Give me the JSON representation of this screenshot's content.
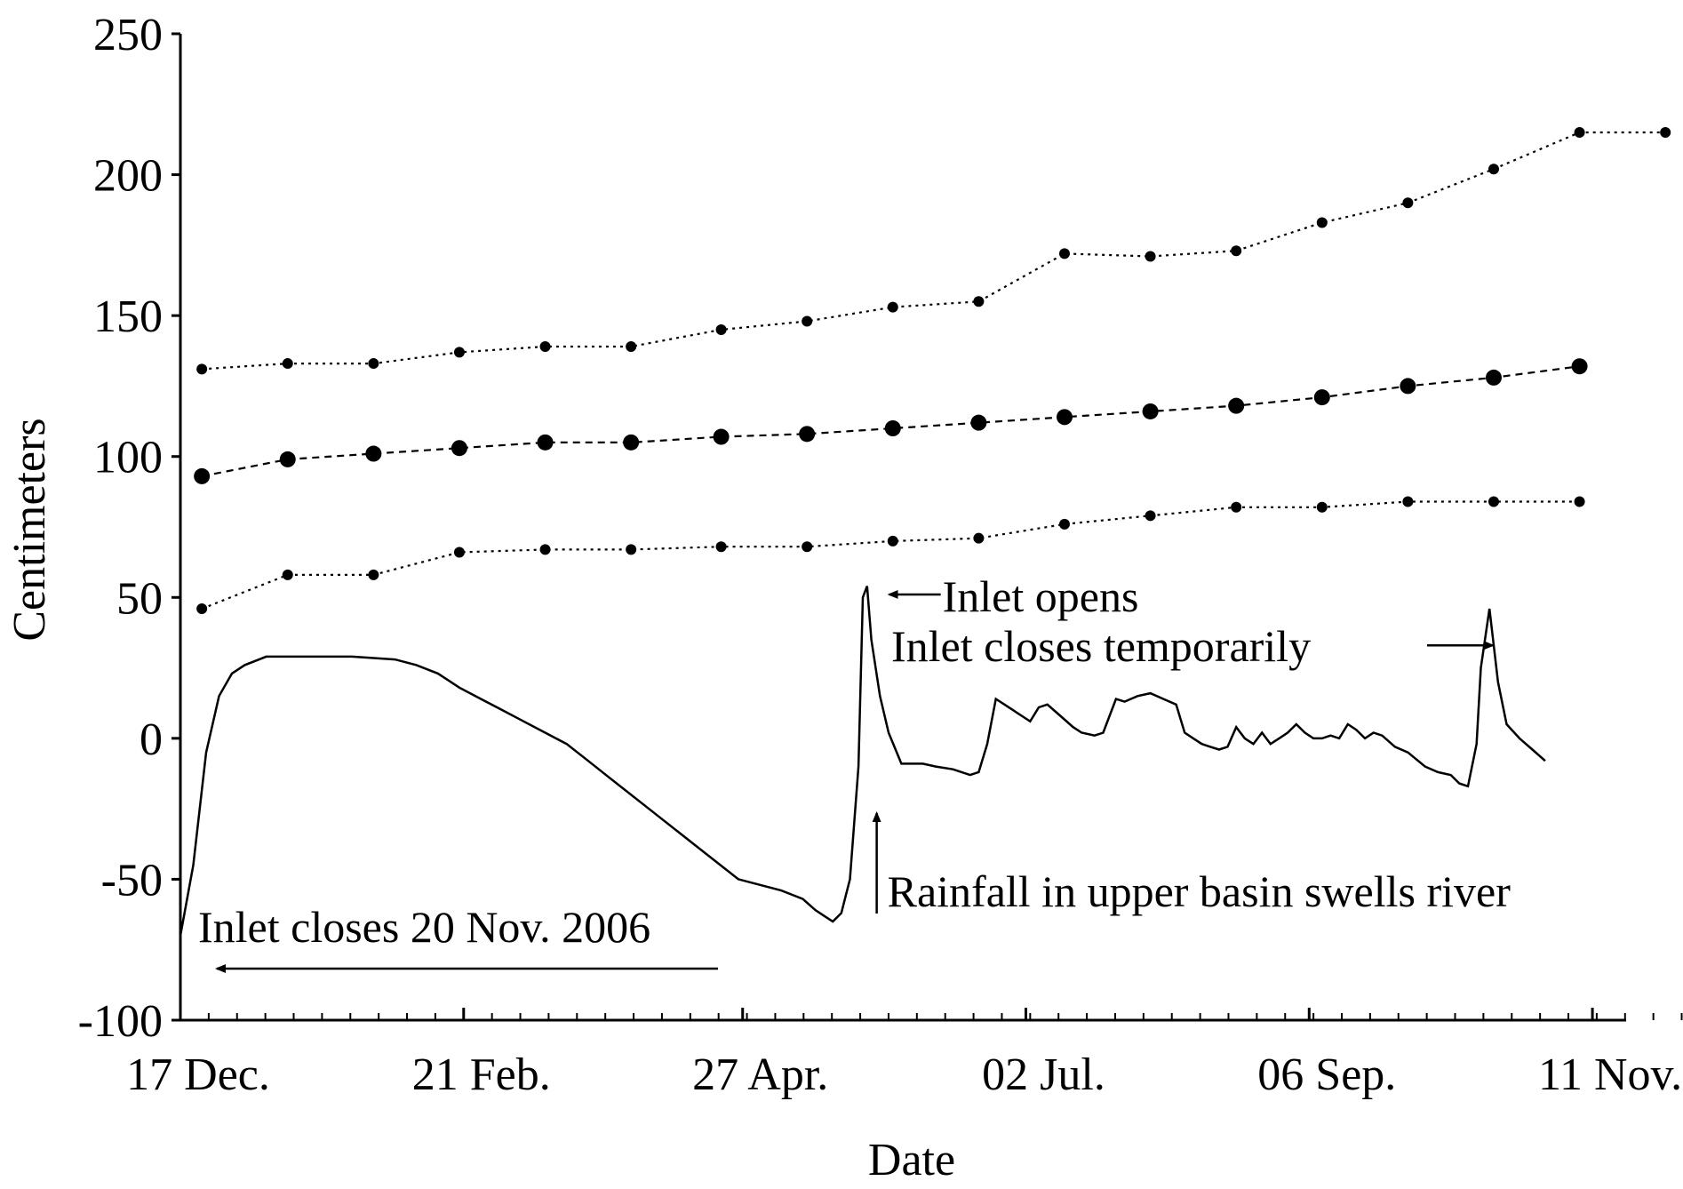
{
  "chart_data": {
    "type": "line",
    "xlabel": "Date",
    "ylabel": "Centimeters",
    "ylim": [
      -100,
      250
    ],
    "y_ticks": [
      250,
      200,
      150,
      100,
      50,
      0,
      -50,
      -100
    ],
    "x_ticks": [
      {
        "label": "17 Dec.",
        "day": 0
      },
      {
        "label": "21 Feb.",
        "day": 66
      },
      {
        "label": "27 Apr.",
        "day": 131
      },
      {
        "label": "02 Jul.",
        "day": 197
      },
      {
        "label": "06 Sep.",
        "day": 263
      },
      {
        "label": "11 Nov.",
        "day": 329
      }
    ],
    "xlim": [
      0,
      357
    ],
    "grid": false,
    "series": [
      {
        "style": "dotted",
        "marker": "small-dot",
        "x": [
          5,
          25,
          45,
          65,
          85,
          105,
          126,
          146,
          166,
          186,
          206,
          226,
          246,
          266,
          286,
          306,
          326,
          346
        ],
        "y": [
          131,
          133,
          133,
          137,
          139,
          139,
          145,
          148,
          153,
          155,
          172,
          171,
          173,
          183,
          190,
          202,
          215,
          215
        ]
      },
      {
        "style": "dashed",
        "marker": "large-dot",
        "x": [
          5,
          25,
          45,
          65,
          85,
          105,
          126,
          146,
          166,
          186,
          206,
          226,
          246,
          266,
          286,
          306,
          326
        ],
        "y": [
          93,
          99,
          101,
          103,
          105,
          105,
          107,
          108,
          110,
          112,
          114,
          116,
          118,
          121,
          125,
          128,
          132
        ]
      },
      {
        "style": "dotted",
        "marker": "small-dot",
        "x": [
          5,
          25,
          45,
          65,
          85,
          105,
          126,
          146,
          166,
          186,
          206,
          226,
          246,
          266,
          286,
          306,
          326
        ],
        "y": [
          46,
          58,
          58,
          66,
          67,
          67,
          68,
          68,
          70,
          71,
          76,
          79,
          82,
          82,
          84,
          84,
          84
        ]
      },
      {
        "style": "solid",
        "marker": "none",
        "x": [
          0,
          3,
          6,
          9,
          12,
          15,
          20,
          30,
          40,
          50,
          55,
          60,
          65,
          70,
          75,
          80,
          85,
          90,
          95,
          100,
          110,
          120,
          130,
          140,
          145,
          148,
          150,
          152,
          154,
          156,
          158,
          159,
          160,
          161,
          163,
          165,
          168,
          170,
          173,
          176,
          180,
          184,
          186,
          188,
          190,
          192,
          194,
          196,
          198,
          200,
          202,
          205,
          208,
          210,
          213,
          215,
          218,
          220,
          223,
          226,
          229,
          232,
          234,
          236,
          238,
          240,
          242,
          244,
          246,
          248,
          250,
          252,
          254,
          256,
          258,
          260,
          262,
          264,
          266,
          268,
          270,
          272,
          274,
          276,
          278,
          280,
          283,
          286,
          290,
          293,
          296,
          298,
          300,
          302,
          303,
          305,
          307,
          309,
          312,
          315,
          318
        ],
        "y": [
          -70,
          -45,
          -5,
          15,
          23,
          26,
          29,
          29,
          29,
          28,
          26,
          23,
          18,
          14,
          10,
          6,
          2,
          -2,
          -8,
          -14,
          -26,
          -38,
          -50,
          -54,
          -57,
          -61,
          -63,
          -65,
          -62,
          -50,
          -10,
          50,
          54,
          35,
          15,
          2,
          -9,
          -9,
          -9,
          -10,
          -11,
          -13,
          -12,
          -2,
          14,
          12,
          10,
          8,
          6,
          11,
          12,
          8,
          4,
          2,
          1,
          2,
          14,
          13,
          15,
          16,
          14,
          12,
          2,
          0,
          -2,
          -3,
          -4,
          -3,
          4,
          0,
          -2,
          2,
          -2,
          0,
          2,
          5,
          2,
          0,
          0,
          1,
          0,
          5,
          3,
          0,
          2,
          1,
          -3,
          -5,
          -10,
          -12,
          -13,
          -16,
          -17,
          -2,
          25,
          46,
          20,
          5,
          0,
          -4,
          -8
        ]
      }
    ],
    "annotations": [
      {
        "text": "Inlet opens",
        "arrow": "left",
        "x": 161,
        "y": 52
      },
      {
        "text": "Inlet closes temporarily",
        "arrow": "right",
        "x": 303,
        "y": 33
      },
      {
        "text": "Rainfall in upper basin swells river",
        "arrow": "up",
        "x": 161,
        "y": -27
      },
      {
        "text": "Inlet closes 20 Nov. 2006",
        "arrow": "left",
        "x": 9,
        "y": -81
      }
    ]
  }
}
